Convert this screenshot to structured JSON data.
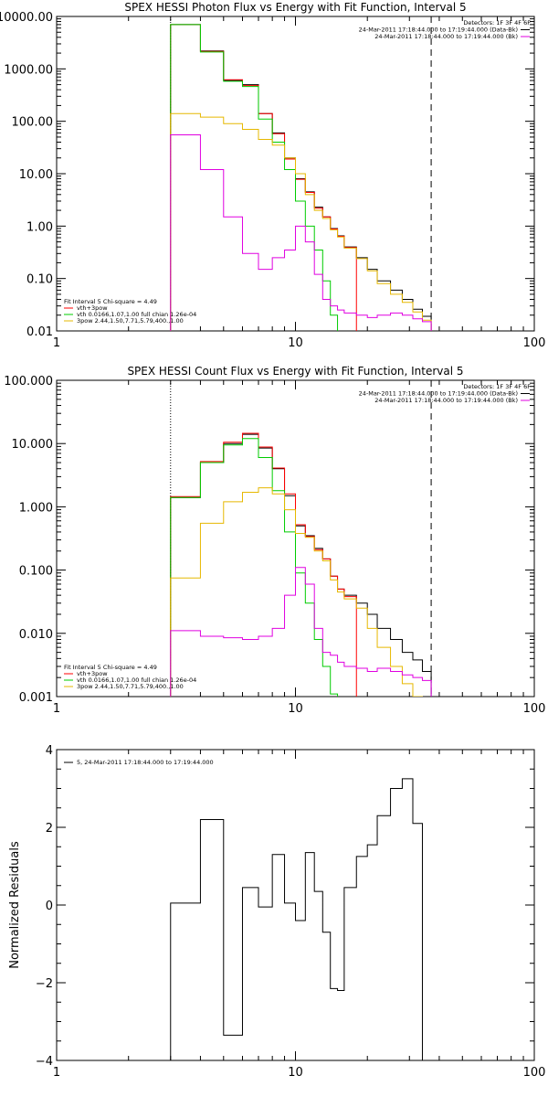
{
  "colors": {
    "background": "#ffffff",
    "axes": "#000000",
    "black": "#000000",
    "red": "#ff0000",
    "green": "#00cc00",
    "yellow": "#e6b800",
    "magenta": "#e000e0"
  },
  "chart_data": [
    {
      "type": "line",
      "step": true,
      "title": "SPEX HESSI Photon Flux vs Energy with Fit Function, Interval 5",
      "xscale": "log",
      "yscale": "log",
      "xlim": [
        1,
        100
      ],
      "ylim": [
        0.01,
        10000
      ],
      "xticks": [
        1,
        10,
        100
      ],
      "xticklabels": [
        "1",
        "10",
        "100"
      ],
      "yticks": [
        0.01,
        0.1,
        1,
        10,
        100,
        1000,
        10000
      ],
      "yticklabels": [
        "0.01",
        "0.10",
        "1.00",
        "10.00",
        "100.00",
        "1000.00",
        "10000.00"
      ],
      "vlines": [
        {
          "x": 3.0,
          "style": "dotted"
        },
        {
          "x": 37.0,
          "style": "dashed"
        }
      ],
      "legend_top_right": {
        "lines": [
          "Detectors: 1F 3F 4F 6F",
          "24-Mar-2011 17:18:44.000 to 17:19:44.000 (Data-Bk)",
          "24-Mar-2011 17:18:44.000 to 17:19:44.000 (Bk)"
        ],
        "line_colors": [
          "",
          "black",
          "magenta"
        ]
      },
      "legend_bottom_left": {
        "header": "Fit Interval  5    Chi-square = 4.49",
        "entries": [
          {
            "label": "vth+3pow",
            "color": "red"
          },
          {
            "label": "vth 0.0166,1.07,1.00  full chian 1.26e-04",
            "color": "green"
          },
          {
            "label": "3pow 2.44,1.50,7.71,5.79,400.,1.00",
            "color": "yellow"
          }
        ]
      },
      "bin_edges": [
        3,
        4,
        5,
        6,
        7,
        8,
        9,
        10,
        11,
        12,
        13,
        14,
        15,
        16,
        18,
        20,
        22,
        25,
        28,
        31,
        34,
        37
      ],
      "series": [
        {
          "color": "black",
          "values": [
            7000,
            2200,
            600,
            500,
            140,
            60,
            20,
            8,
            4.5,
            2.3,
            1.5,
            0.9,
            0.65,
            0.4,
            0.25,
            0.15,
            0.09,
            0.06,
            0.04,
            0.026,
            0.019
          ]
        },
        {
          "color": "red",
          "values": [
            7000,
            2150,
            620,
            480,
            140,
            58,
            19,
            7.8,
            4.4,
            2.2,
            1.5,
            0.88,
            0.64,
            0.39
          ]
        },
        {
          "color": "green",
          "values": [
            7000,
            2100,
            580,
            460,
            110,
            40,
            12,
            3.0,
            1.0,
            0.35,
            0.09,
            0.02,
            0.005
          ]
        },
        {
          "color": "yellow",
          "values": [
            140,
            120,
            90,
            70,
            45,
            35,
            20,
            10,
            4.0,
            2.0,
            1.4,
            0.85,
            0.62,
            0.38,
            0.24,
            0.14,
            0.08,
            0.05,
            0.035,
            0.023,
            0.016
          ]
        },
        {
          "color": "magenta",
          "values": [
            55,
            12,
            1.5,
            0.3,
            0.15,
            0.25,
            0.35,
            1.0,
            0.5,
            0.12,
            0.04,
            0.03,
            0.025,
            0.022,
            0.02,
            0.018,
            0.02,
            0.022,
            0.02,
            0.017,
            0.015
          ]
        }
      ]
    },
    {
      "type": "line",
      "step": true,
      "title": "SPEX HESSI Count Flux vs Energy with Fit Function, Interval 5",
      "xscale": "log",
      "yscale": "log",
      "xlim": [
        1,
        100
      ],
      "ylim": [
        0.001,
        100
      ],
      "xticks": [
        1,
        10,
        100
      ],
      "xticklabels": [
        "1",
        "10",
        "100"
      ],
      "yticks": [
        0.001,
        0.01,
        0.1,
        1,
        10,
        100
      ],
      "yticklabels": [
        "0.001",
        "0.010",
        "0.100",
        "1.000",
        "10.000",
        "100.000"
      ],
      "vlines": [
        {
          "x": 3.0,
          "style": "dotted"
        },
        {
          "x": 37.0,
          "style": "dashed"
        }
      ],
      "legend_top_right": {
        "lines": [
          "Detectors: 1F 3F 4F 6F",
          "24-Mar-2011 17:18:44.000 to 17:19:44.000 (Data-Bk)",
          "24-Mar-2011 17:18:44.000 to 17:19:44.000 (Bk)"
        ],
        "line_colors": [
          "",
          "black",
          "magenta"
        ]
      },
      "legend_bottom_left": {
        "header": "Fit Interval  5    Chi-square = 4.49",
        "entries": [
          {
            "label": "vth+3pow",
            "color": "red"
          },
          {
            "label": "vth 0.0166,1.07,1.00  full chian 1.26e-04",
            "color": "green"
          },
          {
            "label": "3pow 2.44,1.50,7.71,5.79,400.,1.00",
            "color": "yellow"
          }
        ]
      },
      "bin_edges": [
        3,
        4,
        5,
        6,
        7,
        8,
        9,
        10,
        11,
        12,
        13,
        14,
        15,
        16,
        18,
        20,
        22,
        25,
        28,
        31,
        34,
        37
      ],
      "series": [
        {
          "color": "black",
          "values": [
            1.4,
            5.0,
            10.0,
            14.0,
            8.5,
            4.0,
            1.5,
            0.5,
            0.35,
            0.22,
            0.15,
            0.08,
            0.05,
            0.04,
            0.03,
            0.02,
            0.012,
            0.008,
            0.005,
            0.0038,
            0.0025
          ]
        },
        {
          "color": "red",
          "values": [
            1.45,
            5.2,
            10.5,
            14.5,
            8.8,
            4.1,
            1.6,
            0.52,
            0.34,
            0.21,
            0.15,
            0.08,
            0.05,
            0.038
          ]
        },
        {
          "color": "green",
          "values": [
            1.4,
            5.0,
            9.5,
            12.0,
            6.0,
            1.8,
            0.4,
            0.09,
            0.03,
            0.008,
            0.003,
            0.0011,
            0.0005
          ]
        },
        {
          "color": "yellow",
          "values": [
            0.075,
            0.55,
            1.2,
            1.7,
            2.0,
            1.6,
            0.9,
            0.38,
            0.33,
            0.2,
            0.14,
            0.07,
            0.045,
            0.035,
            0.025,
            0.012,
            0.006,
            0.003,
            0.0016,
            0.001,
            0.0006
          ]
        },
        {
          "color": "magenta",
          "values": [
            0.011,
            0.009,
            0.0085,
            0.008,
            0.009,
            0.012,
            0.04,
            0.11,
            0.06,
            0.012,
            0.005,
            0.0045,
            0.0035,
            0.003,
            0.0028,
            0.0025,
            0.0028,
            0.0025,
            0.0022,
            0.002,
            0.0018
          ]
        }
      ]
    },
    {
      "type": "line",
      "step": true,
      "title": "",
      "xscale": "log",
      "yscale": "linear",
      "xlim": [
        1,
        100
      ],
      "ylim": [
        -4,
        4
      ],
      "xticks": [
        1,
        10,
        100
      ],
      "xticklabels": [
        "1",
        "10",
        "100"
      ],
      "yticks": [
        -4,
        -2,
        0,
        2,
        4
      ],
      "yticklabels": [
        "−4",
        "−2",
        "0",
        "2",
        "4"
      ],
      "ylabel": "Normalized Residuals",
      "legend_top_left": {
        "entries": [
          {
            "label": "5, 24-Mar-2011 17:18:44.000 to 17:19:44.000",
            "color": "black"
          }
        ]
      },
      "bin_edges": [
        3,
        4,
        5,
        6,
        7,
        8,
        9,
        10,
        11,
        12,
        13,
        14,
        15,
        16,
        18,
        20,
        22,
        25,
        28,
        31,
        34,
        37
      ],
      "series": [
        {
          "color": "black",
          "values": [
            0.05,
            2.2,
            -3.35,
            0.45,
            -0.05,
            1.3,
            0.05,
            -0.4,
            1.35,
            0.35,
            -0.7,
            -2.15,
            -2.2,
            0.45,
            1.25,
            1.55,
            2.3,
            3.0,
            3.25,
            2.1,
            -4.1
          ]
        }
      ]
    }
  ]
}
